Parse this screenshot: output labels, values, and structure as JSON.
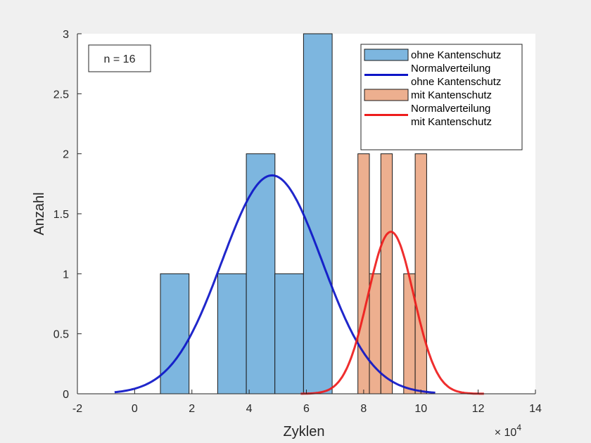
{
  "chart_data": {
    "type": "bar",
    "xlabel": "Zyklen",
    "ylabel": "Anzahl",
    "x_exponent_label": "× 10",
    "x_exponent_power": "4",
    "x_multiplier": 10000,
    "xlim": [
      -20000,
      140000
    ],
    "ylim": [
      0,
      3
    ],
    "xticks": [
      -20000,
      0,
      20000,
      40000,
      60000,
      80000,
      100000,
      120000,
      140000
    ],
    "xtick_labels": [
      "-2",
      "0",
      "2",
      "4",
      "6",
      "8",
      "10",
      "12",
      "14"
    ],
    "yticks": [
      0,
      0.5,
      1,
      1.5,
      2,
      2.5,
      3
    ],
    "ytick_labels": [
      "0",
      "0.5",
      "1",
      "1.5",
      "2",
      "2.5",
      "3"
    ],
    "annotation": "n = 16",
    "legend": {
      "position": "top-right",
      "entries": [
        {
          "label_lines": [
            "ohne Kantenschutz"
          ],
          "kind": "patch",
          "series": "hist_ohne"
        },
        {
          "label_lines": [
            "Normalverteilung",
            "ohne Kantenschutz"
          ],
          "kind": "line",
          "series": "fit_ohne"
        },
        {
          "label_lines": [
            "mit Kantenschutz"
          ],
          "kind": "patch",
          "series": "hist_mit"
        },
        {
          "label_lines": [
            "Normalverteilung",
            "mit Kantenschutz"
          ],
          "kind": "line",
          "series": "fit_mit"
        }
      ]
    },
    "series": [
      {
        "id": "hist_ohne",
        "name": "ohne Kantenschutz",
        "kind": "histogram",
        "color": "#7db6df",
        "bins": [
          {
            "x0": 9000,
            "x1": 19000,
            "count": 1
          },
          {
            "x0": 19000,
            "x1": 29000,
            "count": 0
          },
          {
            "x0": 29000,
            "x1": 39000,
            "count": 1
          },
          {
            "x0": 39000,
            "x1": 49000,
            "count": 2
          },
          {
            "x0": 49000,
            "x1": 59000,
            "count": 1
          },
          {
            "x0": 59000,
            "x1": 69000,
            "count": 3
          }
        ]
      },
      {
        "id": "fit_ohne",
        "name": "Normalverteilung ohne Kantenschutz",
        "kind": "normal",
        "color": "#0d15c7",
        "mean": 48000,
        "sd": 17500,
        "peak": 1.82,
        "x_range": [
          -7000,
          105000
        ]
      },
      {
        "id": "hist_mit",
        "name": "mit Kantenschutz",
        "kind": "histogram",
        "color": "#edaf8f",
        "bins": [
          {
            "x0": 78000,
            "x1": 82000,
            "count": 2
          },
          {
            "x0": 82000,
            "x1": 86000,
            "count": 1
          },
          {
            "x0": 86000,
            "x1": 90000,
            "count": 2
          },
          {
            "x0": 90000,
            "x1": 94000,
            "count": 0
          },
          {
            "x0": 94000,
            "x1": 98000,
            "count": 1
          },
          {
            "x0": 98000,
            "x1": 102000,
            "count": 2
          }
        ]
      },
      {
        "id": "fit_mit",
        "name": "Normalverteilung mit Kantenschutz",
        "kind": "normal",
        "color": "#ee1c1c",
        "mean": 89500,
        "sd": 8000,
        "peak": 1.35,
        "x_range": [
          58000,
          122000
        ]
      }
    ]
  }
}
